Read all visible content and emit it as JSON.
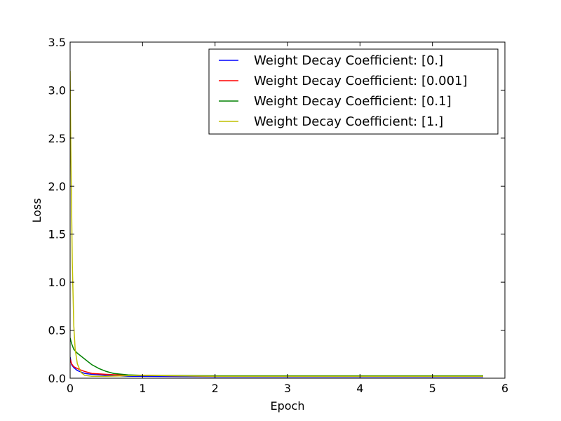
{
  "chart_data": {
    "type": "line",
    "title": "",
    "xlabel": "Epoch",
    "ylabel": "Loss",
    "xlim": [
      0,
      6
    ],
    "ylim": [
      0,
      3.5
    ],
    "x_ticks": [
      0,
      1,
      2,
      3,
      4,
      5,
      6
    ],
    "x_tick_labels": [
      "0",
      "1",
      "2",
      "3",
      "4",
      "5",
      "6"
    ],
    "y_ticks": [
      0,
      0.5,
      1.0,
      1.5,
      2.0,
      2.5,
      3.0,
      3.5
    ],
    "y_tick_labels": [
      "0.0",
      "0.5",
      "1.0",
      "1.5",
      "2.0",
      "2.5",
      "3.0",
      "3.5"
    ],
    "grid": false,
    "legend_position": "top-right",
    "series": [
      {
        "name": "Weight Decay Coefficient: [0.]",
        "color": "#0000ff",
        "x": [
          0,
          0.02,
          0.05,
          0.1,
          0.2,
          0.3,
          0.5,
          0.8,
          1.0,
          2.0,
          3.0,
          4.0,
          5.0,
          5.7
        ],
        "y": [
          0.22,
          0.14,
          0.11,
          0.08,
          0.05,
          0.04,
          0.03,
          0.02,
          0.02,
          0.015,
          0.015,
          0.015,
          0.015,
          0.015
        ]
      },
      {
        "name": "Weight Decay Coefficient: [0.001]",
        "color": "#ff0000",
        "x": [
          0,
          0.02,
          0.05,
          0.1,
          0.2,
          0.3,
          0.5,
          0.8,
          1.0,
          2.0,
          3.0,
          4.0,
          5.0,
          5.7
        ],
        "y": [
          0.2,
          0.15,
          0.12,
          0.1,
          0.07,
          0.05,
          0.04,
          0.03,
          0.03,
          0.02,
          0.02,
          0.02,
          0.02,
          0.02
        ]
      },
      {
        "name": "Weight Decay Coefficient: [0.1]",
        "color": "#008000",
        "x": [
          0,
          0.02,
          0.05,
          0.1,
          0.2,
          0.3,
          0.4,
          0.5,
          0.6,
          0.8,
          1.0,
          2.0,
          3.0,
          4.0,
          5.0,
          5.7
        ],
        "y": [
          0.42,
          0.36,
          0.3,
          0.26,
          0.2,
          0.14,
          0.1,
          0.07,
          0.05,
          0.035,
          0.03,
          0.025,
          0.025,
          0.025,
          0.025,
          0.025
        ]
      },
      {
        "name": "Weight Decay Coefficient: [1.]",
        "color": "#bfbf00",
        "x": [
          0,
          0.01,
          0.03,
          0.05,
          0.07,
          0.1,
          0.15,
          0.2,
          0.3,
          0.5,
          1.0,
          2.0,
          3.0,
          4.0,
          5.0,
          5.7
        ],
        "y": [
          3.2,
          2.4,
          1.2,
          0.55,
          0.3,
          0.15,
          0.06,
          0.03,
          0.02,
          0.02,
          0.03,
          0.02,
          0.02,
          0.02,
          0.02,
          0.02
        ]
      }
    ]
  }
}
